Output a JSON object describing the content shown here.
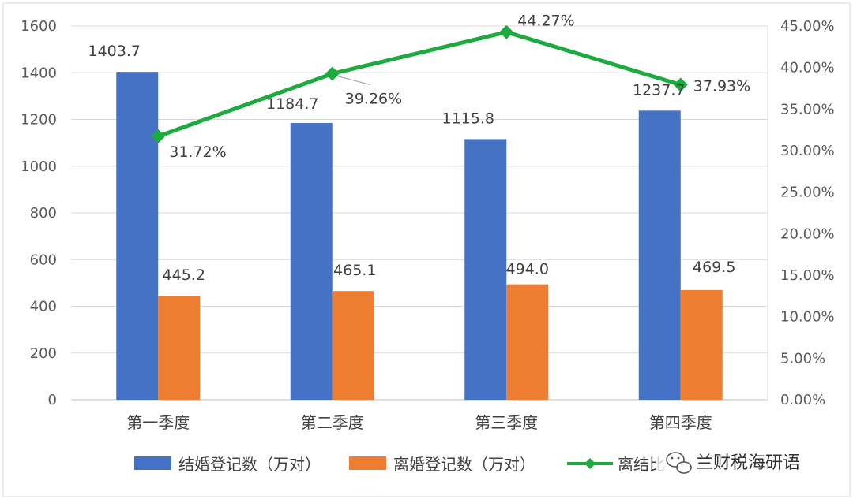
{
  "chart_data": {
    "type": "bar",
    "categories": [
      "第一季度",
      "第二季度",
      "第三季度",
      "第四季度"
    ],
    "series": [
      {
        "name": "结婚登记数（万对）",
        "type": "bar",
        "axis": "left",
        "color": "#4472C4",
        "values": [
          1403.7,
          1184.7,
          1115.8,
          1237.7
        ],
        "labels": [
          "1403.7",
          "1184.7",
          "1115.8",
          "1237.7"
        ]
      },
      {
        "name": "离婚登记数（万对）",
        "type": "bar",
        "axis": "left",
        "color": "#ED7D31",
        "values": [
          445.2,
          465.1,
          494.0,
          469.5
        ],
        "labels": [
          "445.2",
          "465.1",
          "494.0",
          "469.5"
        ]
      },
      {
        "name": "离结比",
        "type": "line",
        "axis": "right",
        "color": "#1DAA3E",
        "values": [
          31.72,
          39.26,
          44.27,
          37.93
        ],
        "labels": [
          "31.72%",
          "39.26%",
          "44.27%",
          "37.93%"
        ]
      }
    ],
    "y_left": {
      "min": 0,
      "max": 1600,
      "step": 200,
      "ticks": [
        "0",
        "200",
        "400",
        "600",
        "800",
        "1000",
        "1200",
        "1400",
        "1600"
      ]
    },
    "y_right": {
      "min": 0,
      "max": 45,
      "step": 5,
      "ticks": [
        "0.00%",
        "5.00%",
        "10.00%",
        "15.00%",
        "20.00%",
        "25.00%",
        "30.00%",
        "35.00%",
        "40.00%",
        "45.00%"
      ]
    },
    "grid": true,
    "legend_position": "bottom"
  },
  "legend_visible_labels": [
    "结婚登记数（万对）",
    "离婚登记数（万对）",
    "离结比"
  ],
  "watermark": {
    "text": "兰财税海研语",
    "icon": "wechat-icon"
  }
}
